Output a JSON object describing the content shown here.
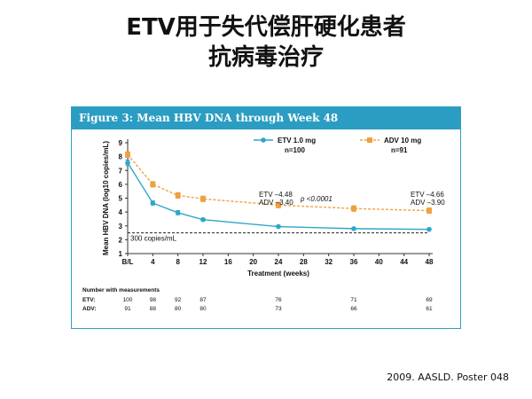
{
  "slide": {
    "title_line1": "ETV用于失代偿肝硬化患者",
    "title_line2": "抗病毒治疗",
    "citation": "2009. AASLD. Poster 048"
  },
  "chart_data": {
    "type": "line",
    "title": "Figure 3: Mean HBV DNA through Week 48",
    "xlabel": "Treatment (weeks)",
    "ylabel": "Mean HBV DNA (log10 copies/mL)",
    "x_tick_labels": [
      "B/L",
      "4",
      "8",
      "12",
      "16",
      "20",
      "24",
      "28",
      "32",
      "36",
      "40",
      "44",
      "48"
    ],
    "x_ticks": [
      0,
      4,
      8,
      12,
      16,
      20,
      24,
      28,
      32,
      36,
      40,
      44,
      48
    ],
    "xlim": [
      0,
      48
    ],
    "ylim": [
      1,
      9
    ],
    "y_ticks": [
      1,
      2,
      3,
      4,
      5,
      6,
      7,
      8,
      9
    ],
    "series": [
      {
        "name": "ETV 1.0 mg",
        "n_label": "n=100",
        "color": "#2fa6c9",
        "style": "solid",
        "marker": "circle",
        "x": [
          0,
          4,
          8,
          12,
          24,
          36,
          48
        ],
        "y": [
          7.55,
          4.65,
          3.95,
          3.45,
          2.95,
          2.8,
          2.75
        ],
        "err": [
          0.2,
          0.15,
          0.15,
          0.1,
          0.08,
          0.07,
          0.07
        ]
      },
      {
        "name": "ADV 10 mg",
        "n_label": "n=91",
        "color": "#f0a040",
        "style": "dashed",
        "marker": "square",
        "x": [
          0,
          4,
          8,
          12,
          24,
          36,
          48
        ],
        "y": [
          8.15,
          6.0,
          5.2,
          4.95,
          4.5,
          4.25,
          4.1
        ],
        "err": [
          0.2,
          0.2,
          0.2,
          0.2,
          0.2,
          0.2,
          0.2
        ]
      }
    ],
    "reference_line": {
      "y": 2.5,
      "label": "300 copies/mL"
    },
    "annotations": {
      "mid_etv": "ETV –4.48",
      "mid_adv": "ADV –3.40",
      "pvalue": "p <0.0001",
      "end_etv": "ETV –4.66",
      "end_adv": "ADV –3.90"
    },
    "table": {
      "header": "Number with measurements",
      "rows": [
        {
          "label": "ETV:",
          "values": [
            "100",
            "98",
            "92",
            "87",
            "76",
            "71",
            "69"
          ]
        },
        {
          "label": "ADV:",
          "values": [
            "91",
            "88",
            "80",
            "80",
            "73",
            "66",
            "61"
          ]
        }
      ]
    },
    "grid": false,
    "legend": "top-center"
  }
}
